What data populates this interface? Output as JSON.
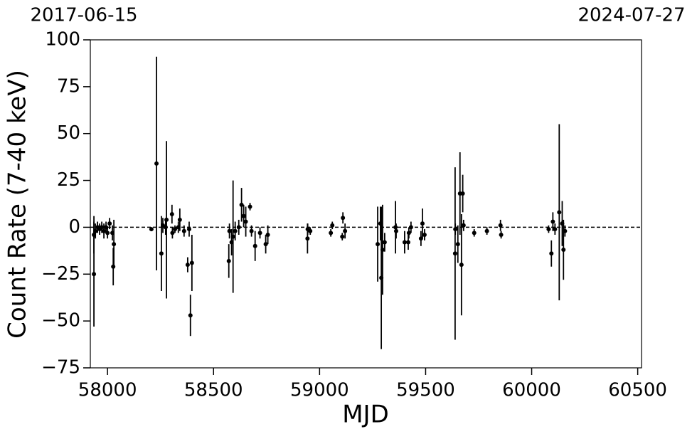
{
  "chart_data": {
    "type": "errorbar",
    "xlabel": "MJD",
    "ylabel": "Count Rate (7-40 keV)",
    "top_labels": [
      "2017-06-15",
      "2024-07-27"
    ],
    "xlim": [
      57919,
      60518
    ],
    "ylim": [
      -75,
      100
    ],
    "xticks": [
      58000,
      58500,
      59000,
      59500,
      60000,
      60500
    ],
    "yticks": [
      {
        "value": -75,
        "label": "−75"
      },
      {
        "value": -50,
        "label": "−50"
      },
      {
        "value": -25,
        "label": "−25"
      },
      0,
      25,
      50,
      75,
      100
    ],
    "hline": 0,
    "color": "#000000",
    "x": [
      57936,
      57936,
      57943,
      57953,
      57963,
      57973,
      57983,
      57993,
      58000,
      58010,
      58023,
      58027,
      58030,
      58207,
      58231,
      58254,
      58261,
      58274,
      58278,
      58304,
      58306,
      58318,
      58334,
      58341,
      58361,
      58378,
      58385,
      58391,
      58398,
      58572,
      58575,
      58585,
      58592,
      58602,
      58619,
      58632,
      58642,
      58652,
      58672,
      58679,
      58696,
      58719,
      58746,
      58756,
      58943,
      58944,
      58956,
      59053,
      59060,
      59107,
      59110,
      59120,
      59274,
      59287,
      59291,
      59297,
      59307,
      59358,
      59361,
      59401,
      59418,
      59421,
      59431,
      59478,
      59485,
      59495,
      59639,
      59640,
      59652,
      59662,
      59669,
      59675,
      59679,
      59729,
      59789,
      59853,
      59856,
      60080,
      60093,
      60100,
      60110,
      60130,
      60144,
      60150,
      60157
    ],
    "values": [
      -25,
      -4,
      -2,
      0,
      -1,
      0,
      -2,
      0,
      -3,
      2,
      -3,
      -21,
      -9,
      -1,
      34,
      -14,
      1,
      0,
      4,
      7,
      -3,
      -1,
      0,
      4,
      -2,
      -20,
      -1,
      -47,
      -19,
      -18,
      -2,
      -8,
      -5,
      -2,
      0,
      12,
      6,
      3,
      11,
      -2,
      -10,
      -3,
      -9,
      -4,
      -6,
      -1,
      -2,
      -3,
      1,
      -5,
      5,
      -2,
      -9,
      2,
      -27,
      -12,
      -8,
      0,
      -2,
      -8,
      -8,
      -3,
      0,
      -6,
      2,
      -4,
      -14,
      -1,
      -9,
      18,
      -20,
      18,
      1,
      -3,
      -2,
      1,
      -4,
      -1,
      -14,
      3,
      -1,
      8,
      2,
      -12,
      -2
    ],
    "errors": [
      28,
      10,
      4,
      3,
      3,
      3,
      4,
      3,
      3,
      3,
      4,
      10,
      13,
      1,
      57,
      20,
      4,
      4,
      42,
      5,
      3,
      2,
      3,
      6,
      3,
      4,
      4,
      11,
      15,
      9,
      4,
      7,
      30,
      5,
      4,
      9,
      6,
      8,
      2,
      3,
      8,
      3,
      5,
      5,
      8,
      3,
      2,
      2,
      2,
      2,
      3,
      4,
      20,
      9,
      38,
      24,
      5,
      14,
      4,
      6,
      4,
      3,
      3,
      4,
      8,
      3,
      46,
      3,
      10,
      22,
      27,
      10,
      3,
      2,
      2,
      3,
      2,
      2,
      7,
      5,
      3,
      47,
      12,
      16,
      3
    ]
  }
}
